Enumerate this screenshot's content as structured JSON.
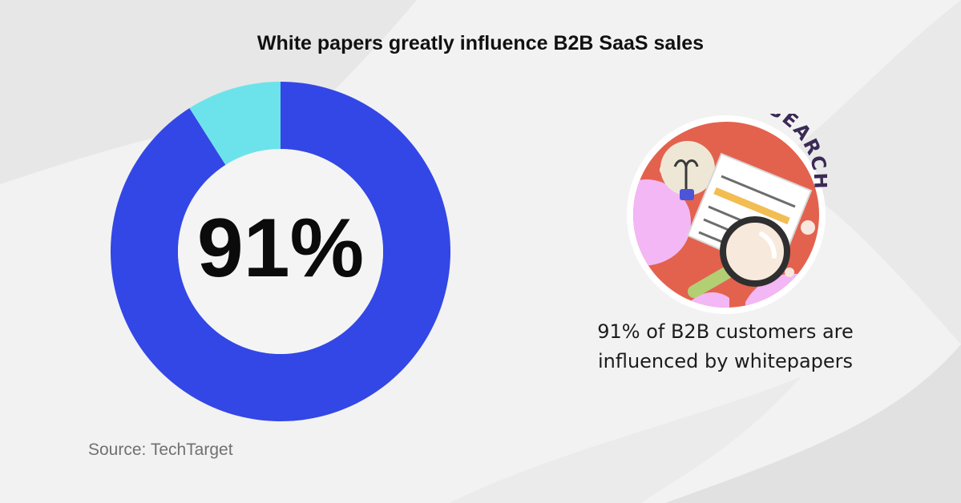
{
  "title": "White papers greatly influence B2B SaaS sales",
  "source": "Source: TechTarget",
  "caption": {
    "line1": "91% of B2B customers are",
    "line2": "influenced by whitepapers"
  },
  "illustration": {
    "label": "RESEARCH",
    "icon": "research-document-magnifier-icon"
  },
  "colors": {
    "background": "#f2f2f2",
    "primary": "#3347e6",
    "secondary": "#6ce3ea",
    "badge_ring": "#e3624e",
    "badge_accent": "#f3b7f5"
  },
  "chart_data": {
    "type": "pie",
    "donut": true,
    "center_label": "91%",
    "slices": [
      {
        "value": 91,
        "color": "#3347e6"
      },
      {
        "value": 9,
        "color": "#6ce3ea"
      }
    ]
  }
}
